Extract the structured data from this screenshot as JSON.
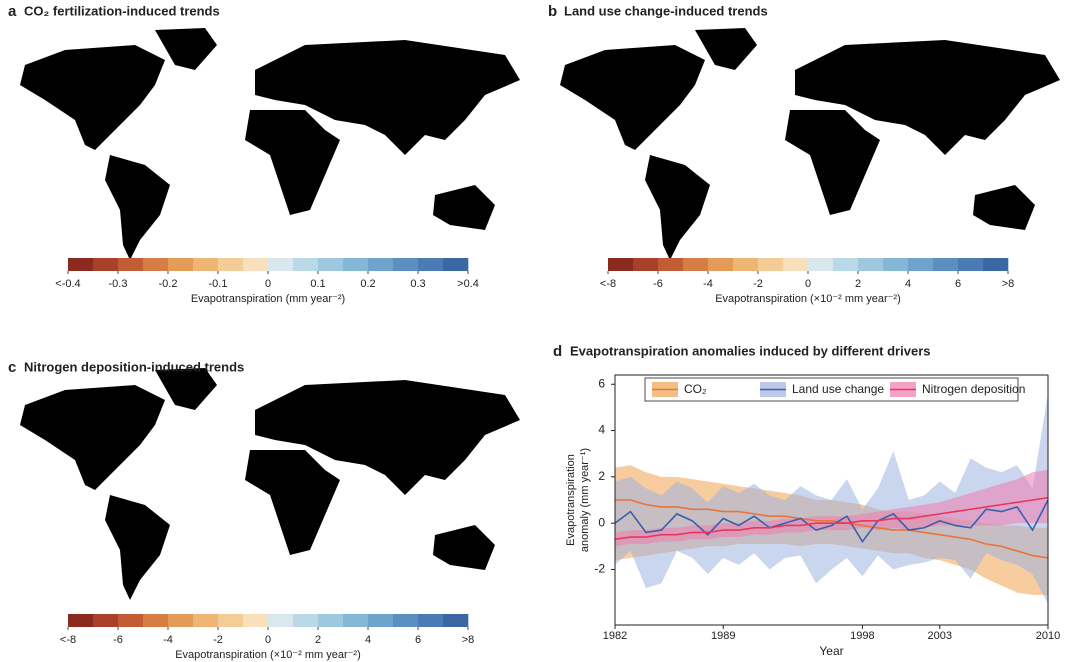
{
  "chart_data": [
    {
      "type": "map",
      "panel": "a",
      "title": "CO₂ fertilization-induced trends",
      "colorbar_label": "Evapotranspiration (mm year⁻²)",
      "clim": [
        -0.4,
        0.4
      ],
      "ticks": [
        {
          "value": -0.4,
          "label": "<-0.4"
        },
        -0.3,
        -0.2,
        -0.1,
        0,
        0.1,
        0.2,
        0.3,
        {
          "value": 0.4,
          "label": ">0.4"
        }
      ],
      "colors": [
        "#8b2a1e",
        "#a8402a",
        "#c25c35",
        "#d57d44",
        "#e39b58",
        "#eeb574",
        "#f4cc98",
        "#f8e0bd",
        "#d8e8ee",
        "#b9d9e8",
        "#9dc8e0",
        "#84b6d6",
        "#6ea3cb",
        "#5b8fbf",
        "#4a7bb2",
        "#3b67a3"
      ]
    },
    {
      "type": "map",
      "panel": "b",
      "title": "Land use change-induced trends",
      "colorbar_label": "Evapotranspiration (×10⁻² mm year⁻²)",
      "clim": [
        -8,
        8
      ],
      "ticks": [
        {
          "value": -8,
          "label": "<-8"
        },
        -6,
        -4,
        -2,
        0,
        2,
        4,
        6,
        {
          "value": 8,
          "label": ">8"
        }
      ],
      "colors": [
        "#8b2a1e",
        "#a8402a",
        "#c25c35",
        "#d57d44",
        "#e39b58",
        "#eeb574",
        "#f4cc98",
        "#f8e0bd",
        "#d8e8ee",
        "#b9d9e8",
        "#9dc8e0",
        "#84b6d6",
        "#6ea3cb",
        "#5b8fbf",
        "#4a7bb2",
        "#3b67a3"
      ]
    },
    {
      "type": "map",
      "panel": "c",
      "title": "Nitrogen deposition-induced trends",
      "colorbar_label": "Evapotranspiration (×10⁻² mm year⁻²)",
      "clim": [
        -8,
        8
      ],
      "ticks": [
        {
          "value": -8,
          "label": "<-8"
        },
        -6,
        -4,
        -2,
        0,
        2,
        4,
        6,
        {
          "value": 8,
          "label": ">8"
        }
      ],
      "colors": [
        "#8b2a1e",
        "#a8402a",
        "#c25c35",
        "#d57d44",
        "#e39b58",
        "#eeb574",
        "#f4cc98",
        "#f8e0bd",
        "#d8e8ee",
        "#b9d9e8",
        "#9dc8e0",
        "#84b6d6",
        "#6ea3cb",
        "#5b8fbf",
        "#4a7bb2",
        "#3b67a3"
      ]
    },
    {
      "type": "line",
      "panel": "d",
      "title": "Evapotranspiration anomalies induced by different drivers",
      "xlabel": "Year",
      "ylabel": [
        "Evapotranspiration",
        "anomaly (mm year⁻¹)"
      ],
      "x": [
        1982,
        1983,
        1984,
        1985,
        1986,
        1987,
        1988,
        1989,
        1990,
        1991,
        1992,
        1993,
        1994,
        1995,
        1996,
        1997,
        1998,
        1999,
        2000,
        2001,
        2002,
        2003,
        2004,
        2005,
        2006,
        2007,
        2008,
        2009,
        2010
      ],
      "xlim": [
        1982,
        2010
      ],
      "xticks": [
        1982,
        1989,
        1998,
        2003,
        2010
      ],
      "ylim": [
        -4.4,
        6.4
      ],
      "yticks": [
        -2,
        0,
        2,
        4,
        6
      ],
      "series": [
        {
          "name": "CO₂",
          "color": "#e8743b",
          "band_color": "#f0a24e",
          "values": [
            1.0,
            1.0,
            0.8,
            0.7,
            0.7,
            0.6,
            0.6,
            0.5,
            0.5,
            0.4,
            0.3,
            0.3,
            0.2,
            0.1,
            0.1,
            0.0,
            -0.1,
            -0.2,
            -0.3,
            -0.3,
            -0.4,
            -0.5,
            -0.6,
            -0.7,
            -0.9,
            -1.0,
            -1.2,
            -1.4,
            -1.5
          ],
          "upper": [
            2.4,
            2.5,
            2.2,
            2.0,
            2.0,
            1.9,
            1.8,
            1.7,
            1.6,
            1.5,
            1.4,
            1.3,
            1.2,
            1.0,
            1.0,
            0.9,
            0.8,
            0.6,
            0.5,
            0.5,
            0.4,
            0.3,
            0.2,
            0.1,
            0.0,
            -0.1,
            -0.1,
            -0.2,
            -0.2
          ],
          "lower": [
            -1.6,
            -1.5,
            -1.4,
            -1.3,
            -1.2,
            -1.1,
            -1.0,
            -1.0,
            -0.9,
            -0.9,
            -0.9,
            -0.9,
            -1.0,
            -0.9,
            -0.9,
            -1.0,
            -1.1,
            -1.2,
            -1.3,
            -1.3,
            -1.5,
            -1.6,
            -1.8,
            -2.0,
            -2.4,
            -2.7,
            -3.0,
            -3.1,
            -3.1
          ]
        },
        {
          "name": "Land use change",
          "color": "#3a5fae",
          "band_color": "#9fb2e0",
          "values": [
            0,
            0.5,
            -0.4,
            -0.3,
            0.4,
            0.1,
            -0.5,
            0.2,
            -0.1,
            0.3,
            -0.2,
            0,
            0.2,
            -0.3,
            -0.1,
            0.3,
            -0.8,
            0.1,
            0.4,
            -0.3,
            -0.2,
            0.1,
            -0.1,
            -0.2,
            0.6,
            0.5,
            0.7,
            -0.3,
            1.0
          ],
          "upper": [
            1.8,
            2.0,
            1.5,
            1.2,
            1.8,
            1.5,
            0.9,
            1.6,
            1.3,
            1.7,
            1.2,
            1.0,
            1.6,
            1.2,
            1.0,
            1.9,
            0.6,
            1.5,
            3.1,
            1.0,
            1.2,
            1.8,
            1.3,
            2.8,
            2.4,
            2.2,
            2.5,
            1.5,
            5.6
          ],
          "lower": [
            -1.8,
            -1.2,
            -2.8,
            -2.6,
            -1.2,
            -1.5,
            -2.2,
            -1.5,
            -1.8,
            -1.3,
            -2.0,
            -1.5,
            -1.4,
            -2.6,
            -2.0,
            -1.5,
            -2.3,
            -1.4,
            -2.0,
            -1.8,
            -1.7,
            -1.5,
            -1.6,
            -2.4,
            -1.3,
            -1.6,
            -1.8,
            -2.2,
            -3.5
          ]
        },
        {
          "name": "Nitrogen deposition",
          "color": "#e8375a",
          "band_color": "#f07cb0",
          "values": [
            -0.7,
            -0.6,
            -0.6,
            -0.5,
            -0.5,
            -0.4,
            -0.4,
            -0.3,
            -0.3,
            -0.2,
            -0.2,
            -0.1,
            -0.1,
            0,
            0,
            0,
            0.1,
            0.1,
            0.2,
            0.2,
            0.3,
            0.4,
            0.5,
            0.6,
            0.7,
            0.8,
            0.9,
            1.0,
            1.1
          ],
          "upper": [
            -0.4,
            -0.3,
            -0.3,
            -0.2,
            -0.2,
            -0.1,
            -0.1,
            0.0,
            0.0,
            0.1,
            0.1,
            0.2,
            0.2,
            0.3,
            0.3,
            0.3,
            0.4,
            0.5,
            0.6,
            0.7,
            0.8,
            0.9,
            1.1,
            1.3,
            1.5,
            1.7,
            1.9,
            2.2,
            2.3
          ],
          "lower": [
            -1.0,
            -0.9,
            -0.9,
            -0.8,
            -0.8,
            -0.7,
            -0.7,
            -0.6,
            -0.6,
            -0.5,
            -0.5,
            -0.4,
            -0.4,
            -0.3,
            -0.3,
            -0.3,
            -0.2,
            -0.3,
            -0.2,
            -0.3,
            -0.2,
            -0.1,
            -0.1,
            -0.1,
            -0.1,
            -0.1,
            0.0,
            0.0,
            0.0
          ]
        }
      ]
    }
  ]
}
